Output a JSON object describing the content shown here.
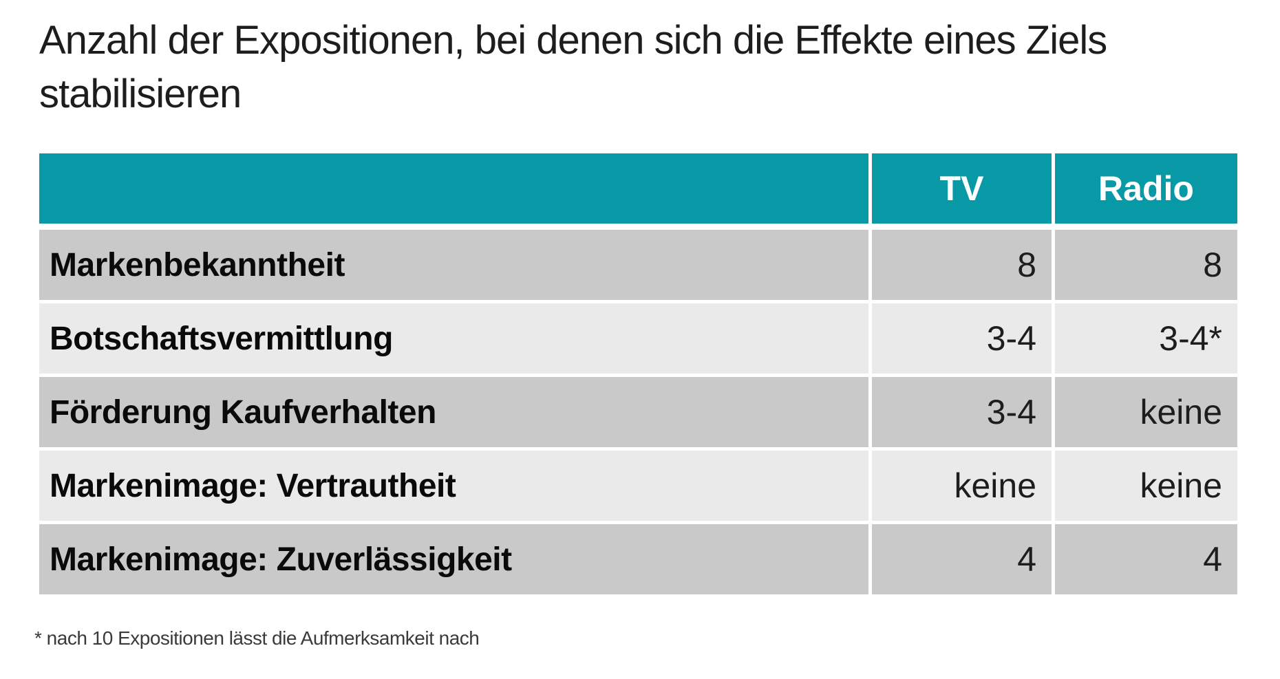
{
  "title": "Anzahl der Expositionen, bei denen sich die Effekte eines Ziels stabilisieren",
  "footnote": "* nach 10 Expositionen lässt die Aufmerksamkeit nach",
  "colors": {
    "header_bg": "#0899a6",
    "header_text": "#ffffff",
    "row_odd_bg": "#c9c9c9",
    "row_even_bg": "#eaeaea"
  },
  "table": {
    "columns": [
      "",
      "TV",
      "Radio"
    ],
    "rows": [
      {
        "label": "Markenbekanntheit",
        "tv": "8",
        "radio": "8"
      },
      {
        "label": "Botschaftsvermittlung",
        "tv": "3-4",
        "radio": "3-4*"
      },
      {
        "label": "Förderung Kaufverhalten",
        "tv": "3-4",
        "radio": "keine"
      },
      {
        "label": "Markenimage: Vertrautheit",
        "tv": "keine",
        "radio": "keine"
      },
      {
        "label": "Markenimage: Zuverlässigkeit",
        "tv": "4",
        "radio": "4"
      }
    ]
  },
  "chart_data": {
    "type": "table",
    "title": "Anzahl der Expositionen, bei denen sich die Effekte eines Ziels stabilisieren",
    "columns": [
      "TV",
      "Radio"
    ],
    "categories": [
      "Markenbekanntheit",
      "Botschaftsvermittlung",
      "Förderung Kaufverhalten",
      "Markenimage: Vertrautheit",
      "Markenimage: Zuverlässigkeit"
    ],
    "series": [
      {
        "name": "TV",
        "values": [
          "8",
          "3-4",
          "3-4",
          "keine",
          "4"
        ]
      },
      {
        "name": "Radio",
        "values": [
          "8",
          "3-4*",
          "keine",
          "keine",
          "4"
        ]
      }
    ],
    "footnote": "* nach 10 Expositionen lässt die Aufmerksamkeit nach",
    "legend_position": "none",
    "grid": false
  }
}
